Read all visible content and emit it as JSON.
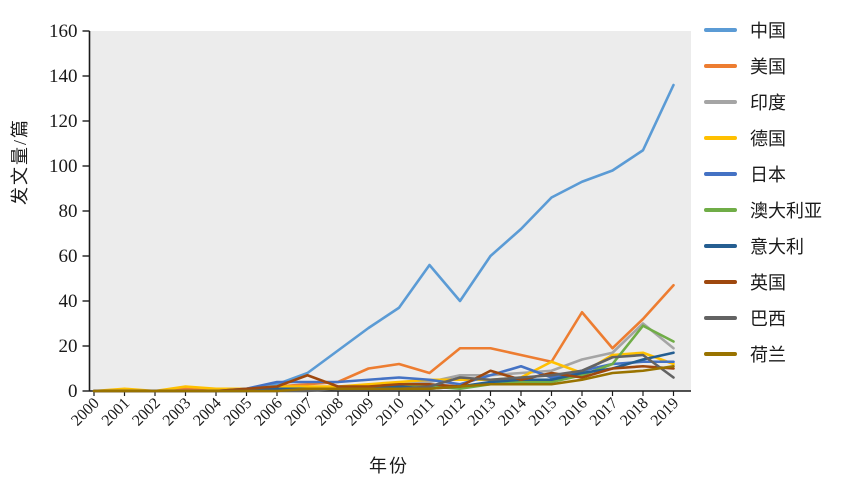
{
  "figure": {
    "type_label": "line-chart",
    "background": "#ffffff",
    "plot_background": "#ECECEC",
    "axis_color": "#1a1a1a"
  },
  "chart_data": {
    "type": "line",
    "title": "",
    "xlabel": "年份",
    "ylabel": "发文量/篇",
    "x": [
      "2000",
      "2001",
      "2002",
      "2003",
      "2004",
      "2005",
      "2006",
      "2007",
      "2008",
      "2009",
      "2010",
      "2011",
      "2012",
      "2013",
      "2014",
      "2015",
      "2016",
      "2017",
      "2018",
      "2019"
    ],
    "ylim": [
      0,
      160
    ],
    "yticks": [
      0,
      20,
      40,
      60,
      80,
      100,
      120,
      140,
      160
    ],
    "grid": false,
    "legend_position": "right",
    "series": [
      {
        "name": "中国",
        "color": "#5B9BD5",
        "values": [
          0,
          0,
          0,
          0,
          0,
          1,
          3,
          8,
          18,
          28,
          37,
          56,
          40,
          60,
          72,
          86,
          93,
          98,
          107,
          136
        ]
      },
      {
        "name": "美国",
        "color": "#ED7D31",
        "values": [
          0,
          0,
          0,
          1,
          0,
          1,
          2,
          3,
          4,
          10,
          12,
          8,
          19,
          19,
          16,
          13,
          35,
          19,
          32,
          47
        ]
      },
      {
        "name": "印度",
        "color": "#A5A5A5",
        "values": [
          0,
          0,
          0,
          0,
          0,
          0,
          0,
          1,
          1,
          2,
          3,
          4,
          7,
          7,
          8,
          9,
          14,
          17,
          30,
          19
        ]
      },
      {
        "name": "德国",
        "color": "#FFC000",
        "values": [
          0,
          1,
          0,
          2,
          1,
          1,
          2,
          2,
          2,
          3,
          4,
          5,
          5,
          5,
          6,
          13,
          8,
          16,
          17,
          12
        ]
      },
      {
        "name": "日本",
        "color": "#4472C4",
        "values": [
          0,
          0,
          0,
          0,
          0,
          1,
          4,
          4,
          4,
          5,
          6,
          5,
          3,
          7,
          11,
          6,
          9,
          12,
          13,
          13
        ]
      },
      {
        "name": "澳大利亚",
        "color": "#70AD47",
        "values": [
          0,
          0,
          0,
          0,
          0,
          0,
          1,
          1,
          1,
          1,
          2,
          2,
          1,
          3,
          4,
          4,
          7,
          12,
          29,
          22
        ]
      },
      {
        "name": "意大利",
        "color": "#255E91",
        "values": [
          0,
          0,
          0,
          0,
          0,
          0,
          1,
          1,
          1,
          1,
          2,
          1,
          2,
          4,
          5,
          5,
          8,
          10,
          14,
          17
        ]
      },
      {
        "name": "英国",
        "color": "#9E480E",
        "values": [
          0,
          0,
          0,
          0,
          0,
          1,
          2,
          7,
          2,
          2,
          3,
          3,
          2,
          9,
          5,
          8,
          6,
          10,
          11,
          10
        ]
      },
      {
        "name": "巴西",
        "color": "#636363",
        "values": [
          0,
          0,
          0,
          0,
          0,
          0,
          0,
          0,
          1,
          1,
          1,
          2,
          6,
          5,
          6,
          7,
          9,
          15,
          16,
          6
        ]
      },
      {
        "name": "荷兰",
        "color": "#997300",
        "values": [
          0,
          0,
          0,
          0,
          0,
          0,
          0,
          1,
          1,
          1,
          1,
          1,
          2,
          3,
          3,
          3,
          5,
          8,
          9,
          11
        ]
      }
    ]
  }
}
